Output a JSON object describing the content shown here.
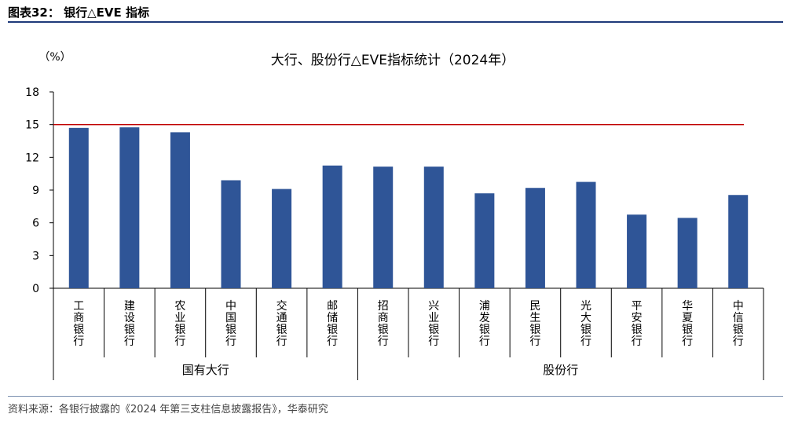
{
  "figure": {
    "title": "图表32： 银行△EVE 指标",
    "source": "资料来源：各银行披露的《2024 年第三支柱信息披露报告》，华泰研究"
  },
  "chart_data": {
    "type": "bar",
    "title": "大行、股份行△EVE指标统计（2024年）",
    "y_unit_label": "（%）",
    "categories": [
      "工商银行",
      "建设银行",
      "农业银行",
      "中国银行",
      "交通银行",
      "邮储银行",
      "招商银行",
      "兴业银行",
      "浦发银行",
      "民生银行",
      "光大银行",
      "平安银行",
      "华夏银行",
      "中信银行"
    ],
    "values": [
      14.7,
      14.75,
      14.3,
      9.9,
      9.1,
      11.25,
      11.15,
      11.15,
      8.7,
      9.2,
      9.75,
      6.75,
      6.45,
      8.55
    ],
    "groups": [
      {
        "label": "国有大行",
        "count": 6
      },
      {
        "label": "股份行",
        "count": 8
      }
    ],
    "reference_line": 15,
    "ylim": [
      0,
      18
    ],
    "yticks": [
      0,
      3,
      6,
      9,
      12,
      15,
      18
    ],
    "bar_color": "#2f5597",
    "reference_color": "#c00000",
    "grid": false,
    "legend": "none"
  }
}
